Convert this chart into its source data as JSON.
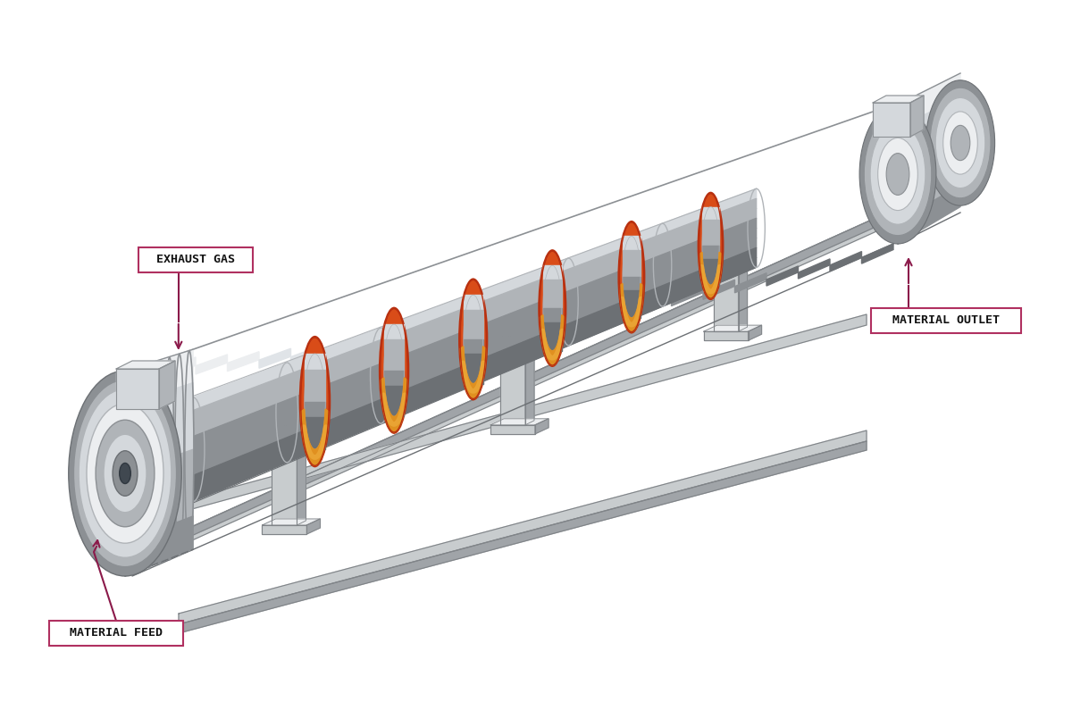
{
  "background_color": "#ffffff",
  "label_color": "#111111",
  "arrow_color": "#8b1a4a",
  "box_border_color": "#b03060",
  "labels": {
    "exhaust_gas": "EXHAUST GAS",
    "material_feed": "MATERIAL FEED",
    "material_outlet": "MATERIAL OUTLET"
  },
  "colors": {
    "hl": "#eceef0",
    "lt": "#d4d8dc",
    "md": "#b0b4b8",
    "dk": "#8c9094",
    "vdk": "#6c7074",
    "ring_orange": "#d94c18",
    "ring_gold": "#e09020",
    "ring_light": "#f0b040",
    "ring_dark": "#b83010",
    "frame_lt": "#c8ccce",
    "frame_md": "#a0a4a8",
    "frame_dk": "#808488"
  },
  "figsize": [
    12.0,
    8.14
  ],
  "dpi": 100
}
